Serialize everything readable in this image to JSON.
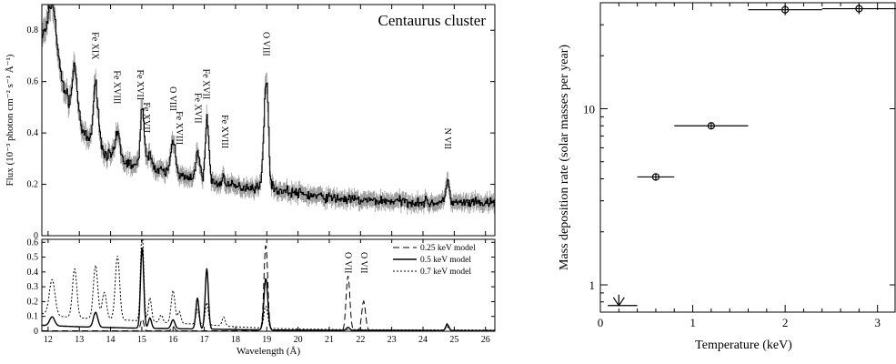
{
  "chart_data": [
    {
      "type": "line",
      "panel": "spectrum-top",
      "title": "Centaurus cluster",
      "xlabel": "",
      "ylabel": "Flux (10⁻³ photon cm⁻² s⁻¹ Å⁻¹)",
      "xlim": [
        11.8,
        26.3
      ],
      "ylim": [
        0,
        0.9
      ],
      "x_ticks": [
        12,
        13,
        14,
        15,
        16,
        17,
        18,
        19,
        20,
        21,
        22,
        23,
        24,
        25,
        26
      ],
      "y_ticks": [
        0,
        0.2,
        0.4,
        0.6,
        0.8
      ],
      "baseline": [
        [
          11.8,
          0.78
        ],
        [
          12.1,
          0.82
        ],
        [
          12.4,
          0.62
        ],
        [
          12.7,
          0.5
        ],
        [
          13.0,
          0.42
        ],
        [
          13.3,
          0.37
        ],
        [
          13.6,
          0.34
        ],
        [
          14.0,
          0.31
        ],
        [
          14.4,
          0.29
        ],
        [
          14.8,
          0.27
        ],
        [
          15.2,
          0.26
        ],
        [
          15.6,
          0.25
        ],
        [
          16.0,
          0.24
        ],
        [
          16.5,
          0.22
        ],
        [
          17.0,
          0.21
        ],
        [
          17.5,
          0.2
        ],
        [
          18.0,
          0.19
        ],
        [
          18.5,
          0.19
        ],
        [
          19.0,
          0.185
        ],
        [
          19.5,
          0.175
        ],
        [
          20.0,
          0.165
        ],
        [
          20.5,
          0.155
        ],
        [
          21.0,
          0.148
        ],
        [
          21.5,
          0.142
        ],
        [
          22.0,
          0.138
        ],
        [
          22.5,
          0.136
        ],
        [
          23.0,
          0.135
        ],
        [
          23.5,
          0.132
        ],
        [
          24.0,
          0.13
        ],
        [
          24.5,
          0.128
        ],
        [
          25.0,
          0.127
        ],
        [
          25.5,
          0.127
        ],
        [
          26.3,
          0.125
        ]
      ],
      "peaks": [
        {
          "x": 12.15,
          "h": 0.12,
          "w": 0.1
        },
        {
          "x": 12.85,
          "h": 0.2,
          "w": 0.08
        },
        {
          "x": 13.52,
          "h": 0.24,
          "w": 0.08
        },
        {
          "x": 14.22,
          "h": 0.1,
          "w": 0.07
        },
        {
          "x": 15.01,
          "h": 0.25,
          "w": 0.06
        },
        {
          "x": 15.26,
          "h": 0.07,
          "w": 0.06
        },
        {
          "x": 16.0,
          "h": 0.13,
          "w": 0.08
        },
        {
          "x": 16.78,
          "h": 0.12,
          "w": 0.06
        },
        {
          "x": 17.08,
          "h": 0.24,
          "w": 0.06
        },
        {
          "x": 17.62,
          "h": 0.03,
          "w": 0.06
        },
        {
          "x": 18.97,
          "h": 0.43,
          "w": 0.07
        },
        {
          "x": 24.78,
          "h": 0.1,
          "w": 0.05
        }
      ],
      "line_labels": [
        {
          "text": "Fe XIX",
          "x": 13.5
        },
        {
          "text": "Fe XVIII",
          "x": 14.2
        },
        {
          "text": "Fe XVII",
          "x": 14.95
        },
        {
          "text": "Fe XVII",
          "x": 15.15
        },
        {
          "text": "O VIII",
          "x": 16.0
        },
        {
          "text": "Fe XVIII",
          "x": 16.2
        },
        {
          "text": "Fe XVII",
          "x": 16.8
        },
        {
          "text": "Fe XVII",
          "x": 17.05
        },
        {
          "text": "Fe XVIII",
          "x": 17.65
        },
        {
          "text": "O VIII",
          "x": 18.97
        },
        {
          "text": "N VII",
          "x": 24.78
        }
      ]
    },
    {
      "type": "line",
      "panel": "spectrum-models",
      "xlabel": "Wavelength (Å)",
      "ylabel": "",
      "xlim": [
        11.8,
        26.3
      ],
      "ylim": [
        0,
        0.62
      ],
      "x_ticks": [
        12,
        13,
        14,
        15,
        16,
        17,
        18,
        19,
        20,
        21,
        22,
        23,
        24,
        25,
        26
      ],
      "y_ticks": [
        0,
        0.1,
        0.2,
        0.3,
        0.4,
        0.5,
        0.6
      ],
      "series": [
        {
          "name": "0.25 keV model",
          "dash": "7,4",
          "peaks": [
            {
              "x": 15.01,
              "h": 0.08,
              "w": 0.05
            },
            {
              "x": 16.0,
              "h": 0.03,
              "w": 0.05
            },
            {
              "x": 18.97,
              "h": 0.58,
              "w": 0.06
            },
            {
              "x": 21.6,
              "h": 0.37,
              "w": 0.06
            },
            {
              "x": 22.1,
              "h": 0.2,
              "w": 0.06
            },
            {
              "x": 24.78,
              "h": 0.05,
              "w": 0.05
            }
          ]
        },
        {
          "name": "0.5 keV model",
          "dash": "",
          "peaks": [
            {
              "x": 12.13,
              "h": 0.06,
              "w": 0.08
            },
            {
              "x": 13.52,
              "h": 0.1,
              "w": 0.07
            },
            {
              "x": 15.01,
              "h": 0.55,
              "w": 0.05
            },
            {
              "x": 15.26,
              "h": 0.07,
              "w": 0.05
            },
            {
              "x": 16.0,
              "h": 0.06,
              "w": 0.06
            },
            {
              "x": 16.78,
              "h": 0.21,
              "w": 0.05
            },
            {
              "x": 17.08,
              "h": 0.41,
              "w": 0.05
            },
            {
              "x": 18.97,
              "h": 0.35,
              "w": 0.06
            },
            {
              "x": 21.6,
              "h": 0.02,
              "w": 0.05
            },
            {
              "x": 24.78,
              "h": 0.04,
              "w": 0.05
            }
          ]
        },
        {
          "name": "0.7 keV model",
          "dash": "2,2",
          "peaks": [
            {
              "x": 12.13,
              "h": 0.24,
              "w": 0.09
            },
            {
              "x": 12.85,
              "h": 0.33,
              "w": 0.07
            },
            {
              "x": 13.52,
              "h": 0.36,
              "w": 0.07
            },
            {
              "x": 13.8,
              "h": 0.18,
              "w": 0.07
            },
            {
              "x": 14.22,
              "h": 0.43,
              "w": 0.07
            },
            {
              "x": 15.01,
              "h": 0.6,
              "w": 0.05
            },
            {
              "x": 15.26,
              "h": 0.16,
              "w": 0.05
            },
            {
              "x": 15.62,
              "h": 0.05,
              "w": 0.05
            },
            {
              "x": 16.0,
              "h": 0.22,
              "w": 0.06
            },
            {
              "x": 16.2,
              "h": 0.08,
              "w": 0.05
            },
            {
              "x": 16.78,
              "h": 0.1,
              "w": 0.05
            },
            {
              "x": 17.08,
              "h": 0.15,
              "w": 0.05
            },
            {
              "x": 17.62,
              "h": 0.06,
              "w": 0.05
            },
            {
              "x": 18.97,
              "h": 0.15,
              "w": 0.06
            },
            {
              "x": 24.78,
              "h": 0.02,
              "w": 0.05
            }
          ]
        }
      ],
      "continuum_07": [
        [
          11.8,
          0.12
        ],
        [
          12.4,
          0.1
        ],
        [
          13.0,
          0.09
        ],
        [
          14.0,
          0.08
        ],
        [
          15.0,
          0.07
        ],
        [
          16.0,
          0.055
        ],
        [
          17.0,
          0.045
        ],
        [
          18.0,
          0.03
        ],
        [
          19.0,
          0.02
        ],
        [
          20.0,
          0.015
        ],
        [
          22.0,
          0.01
        ],
        [
          26.3,
          0.008
        ]
      ],
      "continuum_05": [
        [
          11.8,
          0.04
        ],
        [
          13.0,
          0.03
        ],
        [
          15.0,
          0.02
        ],
        [
          17.0,
          0.015
        ],
        [
          19.0,
          0.008
        ],
        [
          26.3,
          0.004
        ]
      ],
      "line_labels": [
        {
          "text": "O VII",
          "x": 21.6
        },
        {
          "text": "O VII",
          "x": 22.1
        }
      ]
    },
    {
      "type": "scatter",
      "panel": "mass-deposition",
      "xlabel": "Temperature (keV)",
      "ylabel": "Mass deposition rate (solar masses per year)",
      "xlim": [
        0,
        3.2
      ],
      "ylim": [
        0.7,
        40
      ],
      "yscale": "log",
      "x_ticks": [
        0,
        1,
        2,
        3
      ],
      "y_ticks": [
        1,
        10
      ],
      "points": [
        {
          "x": 0.6,
          "y": 4.1,
          "xlo": 0.4,
          "xhi": 0.8,
          "ylo": 3.9,
          "yhi": 4.3
        },
        {
          "x": 1.2,
          "y": 8.0,
          "xlo": 0.8,
          "xhi": 1.6,
          "ylo": 7.7,
          "yhi": 8.3
        },
        {
          "x": 2.0,
          "y": 36.5,
          "xlo": 1.6,
          "xhi": 2.4,
          "ylo": 34,
          "yhi": 39
        },
        {
          "x": 2.8,
          "y": 37.0,
          "xlo": 2.4,
          "xhi": 3.2,
          "ylo": 34.5,
          "yhi": 39.5
        }
      ],
      "upper_limits": [
        {
          "x": 0.2,
          "y": 0.8,
          "xlo": 0.08,
          "xhi": 0.4
        }
      ]
    }
  ]
}
